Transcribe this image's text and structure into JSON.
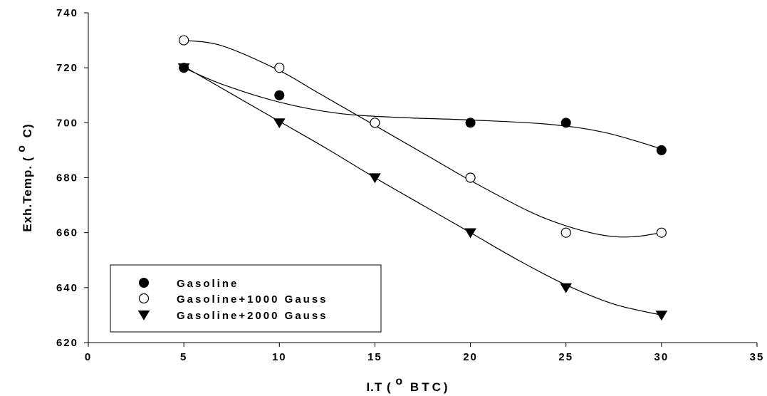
{
  "chart_data": {
    "type": "scatter",
    "xlabel": "I.T (",
    "xlabel_sup": "o",
    "xlabel_tail": "BTC)",
    "ylabel": "Exh.Temp. (",
    "ylabel_sup": "o",
    "ylabel_tail": "C)",
    "xlim": [
      0,
      35
    ],
    "ylim": [
      620,
      740
    ],
    "xticks": [
      "0",
      "5",
      "10",
      "15",
      "20",
      "25",
      "30",
      "35"
    ],
    "yticks": [
      "620",
      "640",
      "660",
      "680",
      "700",
      "720",
      "740"
    ],
    "grid": false,
    "legend_position": "bottom-left",
    "series": [
      {
        "name": "Gasoline",
        "marker": "filled-circle",
        "color": "#000000",
        "x": [
          5,
          10,
          15,
          20,
          25,
          30
        ],
        "y": [
          720,
          710,
          702,
          700,
          700,
          690
        ],
        "show_x": [
          5,
          10,
          20,
          25,
          30
        ],
        "fit": [
          [
            5,
            720
          ],
          [
            7,
            714
          ],
          [
            10,
            707.5
          ],
          [
            13,
            703.5
          ],
          [
            16,
            702
          ],
          [
            20,
            701
          ],
          [
            24,
            699.5
          ],
          [
            27,
            696.5
          ],
          [
            30,
            690.5
          ]
        ]
      },
      {
        "name": "Gasoline+1000 Gauss",
        "marker": "open-circle",
        "color": "#000000",
        "x": [
          5,
          10,
          15,
          20,
          25,
          30
        ],
        "y": [
          730,
          720,
          700,
          680,
          660,
          660
        ],
        "fit": [
          [
            5,
            730
          ],
          [
            7,
            728
          ],
          [
            10,
            719
          ],
          [
            12,
            711
          ],
          [
            15,
            699
          ],
          [
            18,
            687
          ],
          [
            20,
            679
          ],
          [
            23,
            668
          ],
          [
            25,
            662.5
          ],
          [
            27,
            659
          ],
          [
            28.5,
            658.5
          ],
          [
            30,
            660
          ]
        ]
      },
      {
        "name": "Gasoline+2000 Gauss",
        "marker": "filled-triangle-down",
        "color": "#000000",
        "x": [
          5,
          10,
          15,
          20,
          25,
          30
        ],
        "y": [
          720,
          700,
          680,
          660,
          640,
          630
        ],
        "fit": [
          [
            5,
            720.5
          ],
          [
            7.5,
            710.5
          ],
          [
            10,
            700.5
          ],
          [
            12.5,
            690.5
          ],
          [
            15,
            680
          ],
          [
            17.5,
            670
          ],
          [
            20,
            660
          ],
          [
            22.5,
            650
          ],
          [
            25,
            641
          ],
          [
            27.5,
            634
          ],
          [
            30,
            630
          ]
        ]
      }
    ]
  }
}
